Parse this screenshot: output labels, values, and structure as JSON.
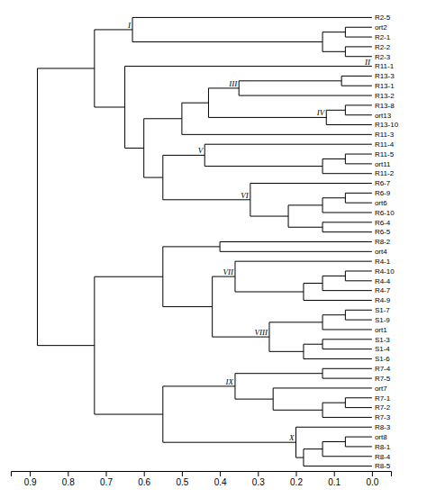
{
  "chart_data": {
    "type": "dendrogram",
    "color": "#000000",
    "leaves": [
      "R2-5",
      "ort2",
      "R2-1",
      "R2-2",
      "R2-3",
      "R11-1",
      "R13-3",
      "R13-1",
      "R13-2",
      "R13-8",
      "ort13",
      "R13-10",
      "R11-3",
      "R11-4",
      "R11-5",
      "ort11",
      "R11-2",
      "R6-7",
      "R6-9",
      "ort6",
      "R6-10",
      "R6-4",
      "R6-5",
      "R8-2",
      "ort4",
      "R4-1",
      "R4-10",
      "R4-4",
      "R4-7",
      "R4-9",
      "S1-7",
      "S1-9",
      "ort1",
      "S1-3",
      "S1-4",
      "S1-6",
      "R7-4",
      "R7-5",
      "ort7",
      "R7-1",
      "R7-2",
      "R7-3",
      "R8-3",
      "ort8",
      "R8-1",
      "R8-4",
      "R8-5"
    ],
    "merges": [
      [
        1,
        2,
        0.07
      ],
      [
        3,
        4,
        0.07
      ],
      [
        47,
        48,
        0.13
      ],
      [
        0,
        49,
        0.63
      ],
      [
        6,
        7,
        0.08
      ],
      [
        51,
        8,
        0.35
      ],
      [
        9,
        10,
        0.07
      ],
      [
        53,
        11,
        0.12
      ],
      [
        52,
        54,
        0.43
      ],
      [
        55,
        12,
        0.5
      ],
      [
        14,
        15,
        0.07
      ],
      [
        57,
        16,
        0.13
      ],
      [
        13,
        58,
        0.44
      ],
      [
        18,
        19,
        0.07
      ],
      [
        60,
        20,
        0.13
      ],
      [
        21,
        22,
        0.13
      ],
      [
        61,
        62,
        0.22
      ],
      [
        17,
        63,
        0.32
      ],
      [
        59,
        64,
        0.55
      ],
      [
        56,
        65,
        0.6
      ],
      [
        5,
        66,
        0.65
      ],
      [
        50,
        67,
        0.73
      ],
      [
        23,
        24,
        0.4
      ],
      [
        26,
        27,
        0.07
      ],
      [
        70,
        28,
        0.13
      ],
      [
        71,
        29,
        0.18
      ],
      [
        25,
        72,
        0.36
      ],
      [
        30,
        31,
        0.07
      ],
      [
        74,
        32,
        0.13
      ],
      [
        33,
        34,
        0.13
      ],
      [
        76,
        35,
        0.18
      ],
      [
        75,
        77,
        0.27
      ],
      [
        73,
        78,
        0.42
      ],
      [
        69,
        79,
        0.55
      ],
      [
        36,
        37,
        0.13
      ],
      [
        39,
        40,
        0.07
      ],
      [
        82,
        41,
        0.13
      ],
      [
        38,
        83,
        0.26
      ],
      [
        81,
        84,
        0.36
      ],
      [
        43,
        44,
        0.07
      ],
      [
        86,
        45,
        0.13
      ],
      [
        87,
        46,
        0.18
      ],
      [
        42,
        88,
        0.2
      ],
      [
        85,
        89,
        0.55
      ],
      [
        80,
        90,
        0.73
      ],
      [
        68,
        91,
        0.88
      ]
    ],
    "clusters": [
      {
        "label": "I",
        "node": 50
      },
      {
        "label": "II",
        "node": 5
      },
      {
        "label": "III",
        "node": 52
      },
      {
        "label": "IV",
        "node": 54
      },
      {
        "label": "V",
        "node": 59
      },
      {
        "label": "VI",
        "node": 64
      },
      {
        "label": "VII",
        "node": 73
      },
      {
        "label": "VIII",
        "node": 78
      },
      {
        "label": "IX",
        "node": 85
      },
      {
        "label": "X",
        "node": 89
      }
    ],
    "xlim": [
      0.95,
      -0.05
    ],
    "xticks": [
      0.9,
      0.8,
      0.7,
      0.6,
      0.5,
      0.4,
      0.3,
      0.2,
      0.1,
      {
        "value": 0,
        "label": "0.0"
      }
    ]
  }
}
